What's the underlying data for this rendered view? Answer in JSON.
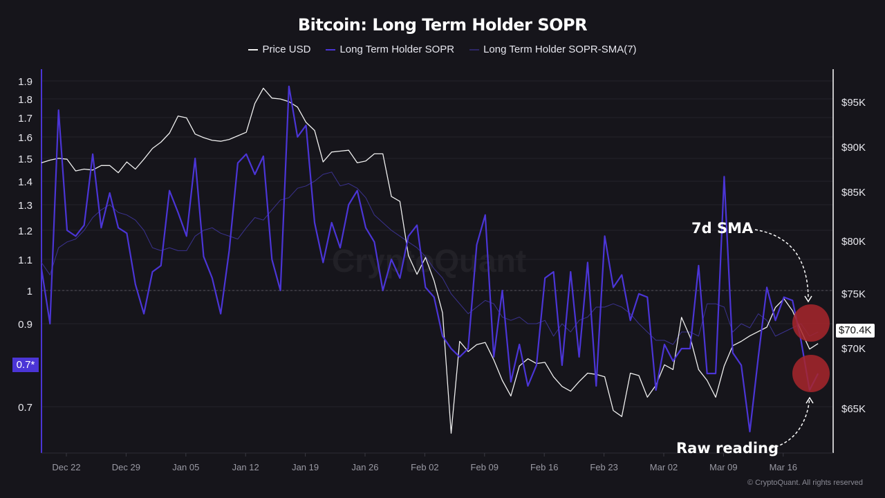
{
  "chart_data": {
    "type": "line",
    "title": "Bitcoin: Long Term Holder SOPR",
    "legend_placement": "top-center",
    "x_tick_labels": [
      "Dec 22",
      "Dec 29",
      "Jan 05",
      "Jan 12",
      "Jan 19",
      "Jan 26",
      "Feb 02",
      "Feb 09",
      "Feb 16",
      "Feb 23",
      "Mar 02",
      "Mar 09",
      "Mar 16"
    ],
    "x_start": "Dec 19",
    "x_end": "Mar 20",
    "left_axis": {
      "ticks": [
        1.9,
        1.8,
        1.7,
        1.6,
        1.5,
        1.4,
        1.3,
        1.2,
        1.1,
        1,
        0.9,
        0.7
      ],
      "tick_labels": [
        "1.9",
        "1.8",
        "1.7",
        "1.6",
        "1.5",
        "1.4",
        "1.3",
        "1.2",
        "1.1",
        "1",
        "0.9",
        "0.7"
      ],
      "current_label": "0.7*",
      "reference_line": 1
    },
    "right_axis": {
      "ticks": [
        95,
        90,
        85,
        80,
        75,
        70,
        65
      ],
      "tick_labels": [
        "$95K",
        "$90K",
        "$85K",
        "$80K",
        "$75K",
        "$70K",
        "$65K"
      ],
      "current_label": "$70.4K"
    },
    "grid": true,
    "series": [
      {
        "name": "Price USD",
        "axis": "right",
        "unit": "K USD",
        "color": "#f0f0f0",
        "values": [
          88.2,
          88.5,
          88.7,
          88.6,
          87.3,
          87.5,
          87.4,
          87.9,
          87.9,
          87.1,
          88.3,
          87.5,
          88.6,
          89.8,
          90.5,
          91.5,
          93.4,
          93.2,
          91.4,
          91.0,
          90.7,
          90.6,
          90.8,
          91.2,
          91.6,
          94.8,
          96.5,
          95.4,
          95.3,
          95.0,
          94.4,
          92.7,
          91.8,
          88.3,
          89.4,
          89.5,
          89.6,
          88.2,
          88.4,
          89.2,
          89.2,
          84.5,
          84.0,
          78.6,
          76.8,
          78.4,
          76.2,
          73.2,
          62.9,
          70.6,
          69.7,
          70.3,
          70.5,
          69.0,
          67.3,
          66.0,
          68.5,
          69.1,
          68.7,
          68.8,
          67.6,
          66.8,
          66.4,
          67.2,
          67.9,
          67.8,
          67.6,
          64.8,
          64.3,
          67.9,
          67.7,
          65.9,
          66.9,
          68.6,
          68.2,
          72.8,
          71.0,
          68.2,
          67.3,
          65.9,
          68.5,
          70.2,
          70.6,
          71.1,
          71.5,
          71.9,
          73.7,
          74.5,
          73.4,
          71.6,
          69.9,
          70.4
        ]
      },
      {
        "name": "Long Term Holder SOPR",
        "axis": "left",
        "color": "#4b35d6",
        "values": [
          1.07,
          0.9,
          1.74,
          1.2,
          1.18,
          1.22,
          1.52,
          1.21,
          1.35,
          1.21,
          1.19,
          1.02,
          0.93,
          1.06,
          1.08,
          1.36,
          1.27,
          1.18,
          1.5,
          1.11,
          1.04,
          0.93,
          1.13,
          1.48,
          1.52,
          1.43,
          1.51,
          1.1,
          1.0,
          1.87,
          1.6,
          1.66,
          1.23,
          1.09,
          1.23,
          1.14,
          1.3,
          1.36,
          1.21,
          1.16,
          1.0,
          1.1,
          1.04,
          1.18,
          1.22,
          1.01,
          0.98,
          0.87,
          0.84,
          0.82,
          0.84,
          1.15,
          1.26,
          0.82,
          1.0,
          0.76,
          0.85,
          0.75,
          0.8,
          1.04,
          1.06,
          0.8,
          1.06,
          0.82,
          1.09,
          0.75,
          1.18,
          1.01,
          1.05,
          0.91,
          0.99,
          0.98,
          0.74,
          0.85,
          0.81,
          0.84,
          0.84,
          1.08,
          0.78,
          0.78,
          1.42,
          0.83,
          0.8,
          0.64,
          0.82,
          1.01,
          0.91,
          0.98,
          0.97,
          0.86,
          0.74,
          0.78
        ]
      },
      {
        "name": "Long Term Holder SOPR-SMA(7)",
        "axis": "left",
        "color": "#3a2f8a",
        "values": [
          1.09,
          1.05,
          1.14,
          1.16,
          1.17,
          1.2,
          1.25,
          1.28,
          1.3,
          1.27,
          1.26,
          1.24,
          1.2,
          1.14,
          1.13,
          1.14,
          1.13,
          1.13,
          1.18,
          1.2,
          1.21,
          1.19,
          1.18,
          1.17,
          1.21,
          1.25,
          1.24,
          1.28,
          1.32,
          1.33,
          1.37,
          1.38,
          1.4,
          1.43,
          1.44,
          1.38,
          1.39,
          1.37,
          1.33,
          1.26,
          1.23,
          1.2,
          1.18,
          1.16,
          1.14,
          1.11,
          1.07,
          1.04,
          0.99,
          0.96,
          0.93,
          0.95,
          0.97,
          0.96,
          0.92,
          0.91,
          0.92,
          0.9,
          0.9,
          0.91,
          0.87,
          0.9,
          0.88,
          0.91,
          0.92,
          0.95,
          0.95,
          0.96,
          0.95,
          0.93,
          0.9,
          0.88,
          0.86,
          0.86,
          0.85,
          0.88,
          0.88,
          0.87,
          0.96,
          0.96,
          0.95,
          0.88,
          0.9,
          0.89,
          0.93,
          0.91,
          0.87,
          0.88,
          0.89,
          0.9,
          0.87,
          0.88
        ]
      }
    ],
    "annotations": [
      {
        "text": "7d SMA",
        "target": "Long Term Holder SOPR-SMA(7)"
      },
      {
        "text": "Raw reading",
        "target": "Long Term Holder SOPR"
      }
    ],
    "highlight_color": "#a8262b"
  },
  "watermark": "CryptoQuant",
  "copyright": "© CryptoQuant. All rights reserved"
}
